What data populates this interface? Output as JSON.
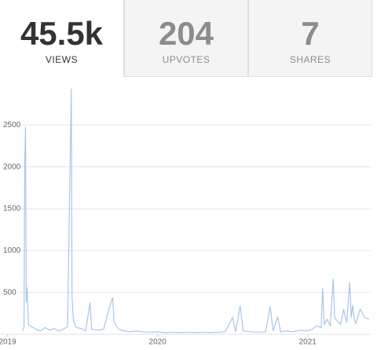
{
  "stats": [
    {
      "value": "45.5k",
      "label": "VIEWS"
    },
    {
      "value": "204",
      "label": "UPVOTES"
    },
    {
      "value": "7",
      "label": "SHARES"
    }
  ],
  "chart_data": {
    "type": "line",
    "color": "#a9c6ea",
    "x": [
      2019.1,
      2019.11,
      2019.115,
      2019.12,
      2019.125,
      2019.13,
      2019.14,
      2019.16,
      2019.19,
      2019.22,
      2019.25,
      2019.28,
      2019.31,
      2019.34,
      2019.37,
      2019.4,
      2019.425,
      2019.43,
      2019.44,
      2019.46,
      2019.49,
      2019.52,
      2019.55,
      2019.56,
      2019.6,
      2019.64,
      2019.68,
      2019.7,
      2019.71,
      2019.74,
      2019.78,
      2019.82,
      2019.86,
      2019.9,
      2019.95,
      2020.0,
      2020.05,
      2020.1,
      2020.15,
      2020.2,
      2020.25,
      2020.3,
      2020.35,
      2020.4,
      2020.45,
      2020.5,
      2020.52,
      2020.55,
      2020.57,
      2020.62,
      2020.67,
      2020.72,
      2020.75,
      2020.77,
      2020.8,
      2020.82,
      2020.86,
      2020.9,
      2020.95,
      2021.0,
      2021.03,
      2021.06,
      2021.09,
      2021.1,
      2021.11,
      2021.13,
      2021.15,
      2021.17,
      2021.18,
      2021.2,
      2021.22,
      2021.24,
      2021.26,
      2021.28,
      2021.29,
      2021.3,
      2021.31,
      2021.32,
      2021.35,
      2021.38,
      2021.41
    ],
    "values": [
      40,
      90,
      2070,
      2480,
      380,
      560,
      120,
      90,
      60,
      40,
      80,
      50,
      70,
      40,
      60,
      90,
      2935,
      430,
      150,
      80,
      70,
      40,
      380,
      60,
      50,
      60,
      330,
      440,
      150,
      60,
      40,
      30,
      40,
      30,
      25,
      30,
      20,
      25,
      20,
      25,
      20,
      25,
      20,
      25,
      30,
      200,
      30,
      340,
      40,
      30,
      25,
      30,
      330,
      40,
      210,
      30,
      40,
      30,
      50,
      40,
      60,
      100,
      80,
      550,
      120,
      180,
      100,
      660,
      200,
      150,
      120,
      300,
      140,
      620,
      200,
      350,
      180,
      130,
      300,
      200,
      180
    ],
    "xlim": [
      2018.95,
      2021.42
    ],
    "xticks": [
      2019,
      2020,
      2021
    ],
    "ylim": [
      0,
      3000
    ],
    "yticks": [
      500,
      1000,
      1500,
      2000,
      2500
    ],
    "grid": true
  }
}
